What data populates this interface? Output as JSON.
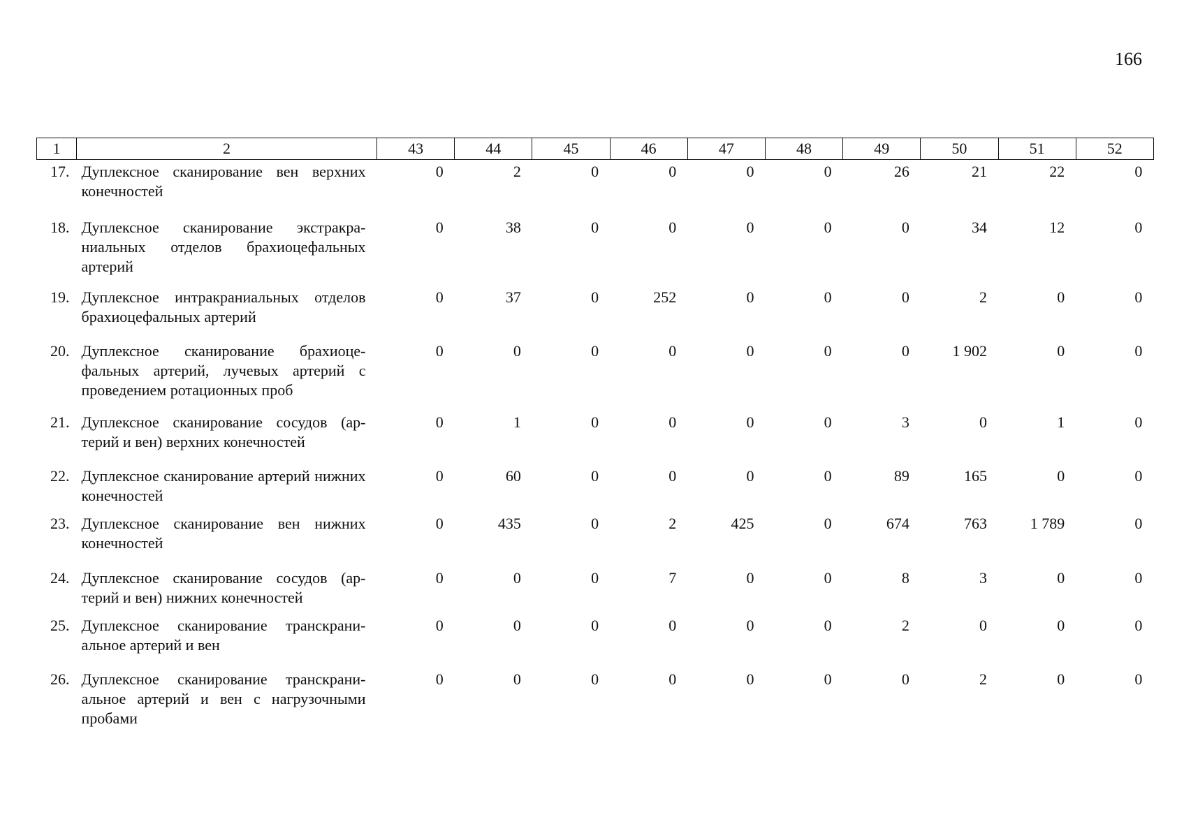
{
  "page_number": "166",
  "table": {
    "headers": [
      "1",
      "2",
      "43",
      "44",
      "45",
      "46",
      "47",
      "48",
      "49",
      "50",
      "51",
      "52"
    ],
    "rows": [
      {
        "num": "17.",
        "name": "Дуплексное сканирование вен верхних конечностей",
        "values": [
          "0",
          "2",
          "0",
          "0",
          "0",
          "0",
          "26",
          "21",
          "22",
          "0"
        ]
      },
      {
        "num": "18.",
        "name": "Дуплексное сканирование экстракра­ниальных отделов брахиоцефальных артерий",
        "values": [
          "0",
          "38",
          "0",
          "0",
          "0",
          "0",
          "0",
          "34",
          "12",
          "0"
        ]
      },
      {
        "num": "19.",
        "name": "Дуплексное интракраниальных отде­лов брахиоцефальных артерий",
        "values": [
          "0",
          "37",
          "0",
          "252",
          "0",
          "0",
          "0",
          "2",
          "0",
          "0"
        ]
      },
      {
        "num": "20.",
        "name": "Дуплексное сканирование брахиоце­фальных артерий, лучевых артерий с проведением ротационных проб",
        "values": [
          "0",
          "0",
          "0",
          "0",
          "0",
          "0",
          "0",
          "1 902",
          "0",
          "0"
        ]
      },
      {
        "num": "21.",
        "name": "Дуплексное сканирование сосудов (ар­терий и вен) верхних конечностей",
        "values": [
          "0",
          "1",
          "0",
          "0",
          "0",
          "0",
          "3",
          "0",
          "1",
          "0"
        ]
      },
      {
        "num": "22.",
        "name": "Дуплексное сканирование артерий нижних конечностей",
        "values": [
          "0",
          "60",
          "0",
          "0",
          "0",
          "0",
          "89",
          "165",
          "0",
          "0"
        ]
      },
      {
        "num": "23.",
        "name": "Дуплексное сканирование вен нижних конечностей",
        "values": [
          "0",
          "435",
          "0",
          "2",
          "425",
          "0",
          "674",
          "763",
          "1 789",
          "0"
        ]
      },
      {
        "num": "24.",
        "name": "Дуплексное сканирование сосудов (ар­терий и вен) нижних конечностей",
        "values": [
          "0",
          "0",
          "0",
          "7",
          "0",
          "0",
          "8",
          "3",
          "0",
          "0"
        ]
      },
      {
        "num": "25.",
        "name": "Дуплексное сканирование транскрани­альное артерий и вен",
        "values": [
          "0",
          "0",
          "0",
          "0",
          "0",
          "0",
          "2",
          "0",
          "0",
          "0"
        ]
      },
      {
        "num": "26.",
        "name": "Дуплексное сканирование транскрани­альное артерий и вен с нагрузочными пробами",
        "values": [
          "0",
          "0",
          "0",
          "0",
          "0",
          "0",
          "0",
          "2",
          "0",
          "0"
        ]
      }
    ]
  }
}
